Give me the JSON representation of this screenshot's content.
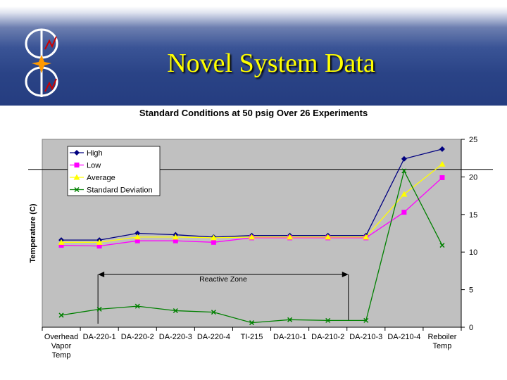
{
  "slide": {
    "title": "Novel System Data"
  },
  "colors": {
    "accent_title": "#ffff00",
    "header_bg": "#2a4386",
    "plot_bg": "#c0c0c0"
  },
  "chart_data": {
    "type": "line",
    "title": "Standard Conditions at 50 psig Over 26 Experiments",
    "ylabel": "Temperature (C)",
    "xlabel": "",
    "categories": [
      "Overhead Vapor Temp",
      "DA-220-1",
      "DA-220-2",
      "DA-220-3",
      "DA-220-4",
      "TI-215",
      "DA-210-1",
      "DA-210-2",
      "DA-210-3",
      "DA-210-4",
      "Reboiler Temp"
    ],
    "category_lines": [
      [
        "Overhead",
        "Vapor",
        "Temp"
      ],
      [
        "DA-220-1"
      ],
      [
        "DA-220-2"
      ],
      [
        "DA-220-3"
      ],
      [
        "DA-220-4"
      ],
      [
        "TI-215"
      ],
      [
        "DA-210-1"
      ],
      [
        "DA-210-2"
      ],
      [
        "DA-210-3"
      ],
      [
        "DA-210-4"
      ],
      [
        "Reboiler",
        "Temp"
      ]
    ],
    "series": [
      {
        "name": "High",
        "color": "#000080",
        "marker": "diamond",
        "values": [
          11.6,
          11.6,
          12.5,
          12.3,
          12.0,
          12.2,
          12.2,
          12.2,
          12.2,
          22.4,
          23.7
        ]
      },
      {
        "name": "Low",
        "color": "#ff00ff",
        "marker": "square",
        "values": [
          10.9,
          10.8,
          11.5,
          11.5,
          11.3,
          11.9,
          11.9,
          11.9,
          11.9,
          15.3,
          19.9
        ]
      },
      {
        "name": "Average",
        "color": "#ffff00",
        "marker": "triangle",
        "values": [
          11.3,
          11.3,
          12.0,
          12.0,
          11.9,
          12.0,
          12.0,
          12.0,
          12.0,
          17.7,
          21.7
        ]
      },
      {
        "name": "Standard Deviation",
        "color": "#008000",
        "marker": "x",
        "values": [
          1.6,
          2.4,
          2.8,
          2.2,
          2.0,
          0.6,
          1.0,
          0.9,
          0.9,
          20.8,
          10.9
        ]
      }
    ],
    "y_ticks": [
      0,
      5,
      10,
      15,
      20,
      25
    ],
    "ylim": [
      0,
      25
    ],
    "legend_position": "top-left",
    "annotation": {
      "text": "Reactive Zone",
      "from_category": 1,
      "to_category": 8
    },
    "reference_line": 21.0
  }
}
